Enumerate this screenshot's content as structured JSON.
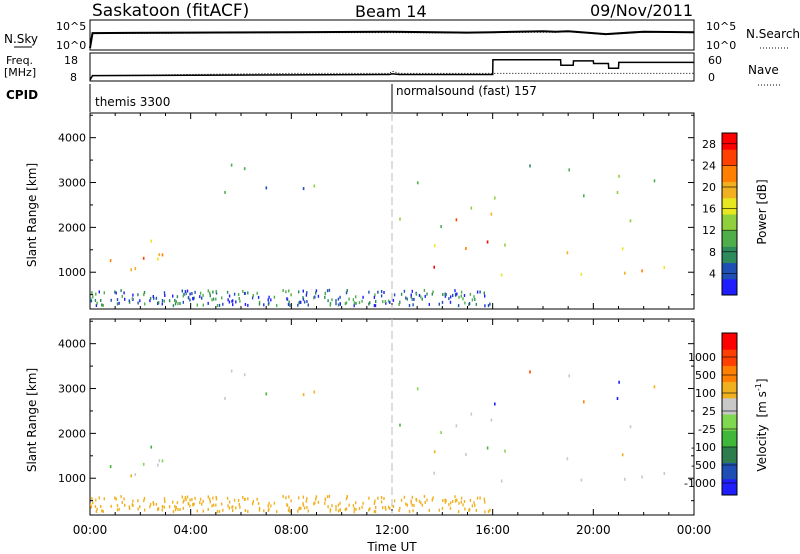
{
  "header": {
    "station": "Saskatoon (fitACF)",
    "beam": "Beam 14",
    "date": "09/Nov/2011"
  },
  "panels": {
    "nsky_label": "N.Sky",
    "nsearch_label": "N.Search",
    "freq_label_1": "Freq.",
    "freq_label_2": "[MHz]",
    "nave_label": "Nave",
    "cpid_label": "CPID",
    "nsky_ticks": [
      "10^5",
      "10^0"
    ],
    "nsearch_ticks": [
      "10^5",
      "10^0"
    ],
    "freq_ticks": [
      "18",
      "8"
    ],
    "nave_ticks": [
      "60",
      "0"
    ],
    "cpid_segments": [
      {
        "start_hour": 0,
        "end_hour": 12,
        "name": "themis 3300"
      },
      {
        "start_hour": 12,
        "end_hour": 24,
        "name": "normalsound (fast) 157"
      }
    ]
  },
  "colors": {
    "power": [
      "#1e1eff",
      "#1f4fb5",
      "#2d8a5a",
      "#4fae4a",
      "#8fd03c",
      "#e8e820",
      "#f0b020",
      "#ff8000",
      "#ff4000",
      "#ff0000"
    ],
    "velocity": [
      "#1e1eff",
      "#1f4fb5",
      "#2e7d4e",
      "#3fb83a",
      "#80d850",
      "#c8c8c8",
      "#f0b020",
      "#ff8000",
      "#ff4000",
      "#ff0000"
    ]
  },
  "chart_data": [
    {
      "type": "line",
      "title": "N.Sky / N.Search",
      "x": [
        0,
        0.1,
        4,
        8,
        12,
        15,
        16,
        18,
        18.5,
        19,
        20.5,
        22,
        24
      ],
      "series": [
        {
          "name": "N.Sky",
          "values": [
            0,
            3.1,
            3.2,
            3.3,
            3.4,
            3.2,
            3.3,
            3.5,
            3.4,
            3.5,
            2.9,
            3.4,
            3.3
          ]
        },
        {
          "name": "N.Search",
          "values": [
            0,
            3.0,
            3.1,
            3.2,
            3.2,
            3.1,
            3.2,
            3.3,
            3.3,
            3.4,
            2.8,
            3.3,
            3.2
          ]
        }
      ],
      "ylim": [
        0,
        5
      ]
    },
    {
      "type": "line",
      "title": "Freq. / Nave",
      "x": [
        0,
        0.1,
        4,
        8,
        11.9,
        12.0,
        12.3,
        16,
        16.01,
        18.7,
        18.71,
        19.2,
        19.21,
        20.0,
        20.01,
        20.6,
        20.61,
        21.0,
        21.01,
        22.5,
        24
      ],
      "series": [
        {
          "name": "Freq.",
          "values": [
            8,
            10,
            10.5,
            11,
            11,
            12,
            11,
            11,
            11,
            11,
            11,
            11,
            11,
            11,
            11,
            11,
            11,
            11,
            11,
            11,
            11
          ]
        },
        {
          "name": "Nave",
          "values": [
            0,
            12,
            13,
            14,
            15,
            17,
            15,
            15,
            55,
            55,
            40,
            40,
            52,
            52,
            45,
            45,
            32,
            32,
            48,
            48,
            48
          ]
        }
      ],
      "y_ticks_freq": [
        8,
        18
      ],
      "y_ticks_nave": [
        0,
        60
      ]
    },
    {
      "type": "heatmap",
      "title": "Power [dB]",
      "xlabel": "",
      "ylabel": "Slant Range [km]",
      "xlim": [
        0,
        24
      ],
      "ylim": [
        180,
        4550
      ],
      "x_ticks": [
        "00:00",
        "04:00",
        "08:00",
        "12:00",
        "16:00",
        "20:00",
        "00:00"
      ],
      "y_ticks": [
        1000,
        2000,
        3000,
        4000
      ],
      "colorbar_label": "Power [dB]",
      "colorbar_ticks": [
        4,
        8,
        12,
        16,
        20,
        24,
        28
      ],
      "colorbar_range": [
        0,
        30
      ]
    },
    {
      "type": "heatmap",
      "title": "Velocity [m s^-1]",
      "xlabel": "Time UT",
      "ylabel": "Slant Range [km]",
      "xlim": [
        0,
        24
      ],
      "ylim": [
        180,
        4550
      ],
      "x_ticks": [
        "00:00",
        "04:00",
        "08:00",
        "12:00",
        "16:00",
        "20:00",
        "00:00"
      ],
      "y_ticks": [
        1000,
        2000,
        3000,
        4000
      ],
      "colorbar_label": "Velocity",
      "colorbar_unit_a": "[m s",
      "colorbar_unit_exp": "-1",
      "colorbar_unit_b": "]",
      "colorbar_ticks": [
        "1000",
        "500",
        "100",
        "25",
        "-25",
        "-100",
        "-500",
        "-1000"
      ]
    }
  ]
}
